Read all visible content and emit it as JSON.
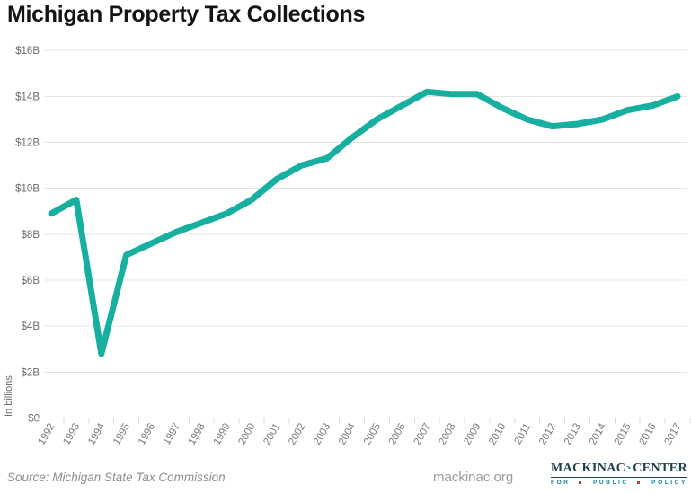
{
  "title": "Michigan Property Tax Collections",
  "footer": {
    "source": "Source: Michigan State Tax Commission",
    "site": "mackinac.org",
    "logo": {
      "name_left": "MACKINAC",
      "name_right": "CENTER",
      "tagline_words": [
        "FOR",
        "PUBLIC",
        "POLICY"
      ],
      "navy": "#1e3d4f",
      "teal": "#0d7e8d",
      "red": "#b0453a"
    }
  },
  "chart_data": {
    "type": "line",
    "title": "Michigan Property Tax Collections",
    "xlabel": "",
    "ylabel": "In billions",
    "ylim": [
      0,
      16
    ],
    "grid": true,
    "legend": "none",
    "line_color": "#16AFA0",
    "x": [
      1992,
      1993,
      1994,
      1995,
      1996,
      1997,
      1998,
      1999,
      2000,
      2001,
      2002,
      2003,
      2004,
      2005,
      2006,
      2007,
      2008,
      2009,
      2010,
      2011,
      2012,
      2013,
      2014,
      2015,
      2016,
      2017
    ],
    "series": [
      {
        "name": "Michigan property tax collections ($ billions)",
        "values": [
          8.9,
          9.5,
          2.8,
          7.1,
          7.6,
          8.1,
          8.5,
          8.9,
          9.5,
          10.4,
          11.0,
          11.3,
          12.2,
          13.0,
          13.6,
          14.2,
          14.1,
          14.1,
          13.5,
          13.0,
          12.7,
          12.8,
          13.0,
          13.4,
          13.6,
          14.0
        ]
      }
    ],
    "yticks": [
      {
        "label": "$16B",
        "value": 16
      },
      {
        "label": "$14B",
        "value": 14
      },
      {
        "label": "$12B",
        "value": 12
      },
      {
        "label": "$10B",
        "value": 10
      },
      {
        "label": "$8B",
        "value": 8
      },
      {
        "label": "$6B",
        "value": 6
      },
      {
        "label": "$4B",
        "value": 4
      },
      {
        "label": "$2B",
        "value": 2
      },
      {
        "label": "$0",
        "value": 0
      }
    ]
  }
}
